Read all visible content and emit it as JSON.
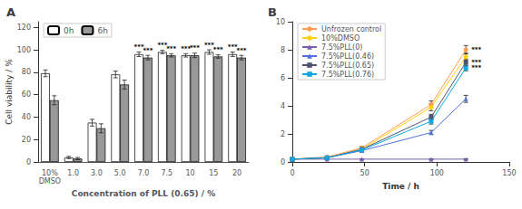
{
  "chart_data": [
    {
      "type": "bar",
      "title": "A",
      "categories": [
        "10%\nDMSO",
        "1.0",
        "3.0",
        "5.0",
        "7.0",
        "7.5",
        "10",
        "15",
        "20"
      ],
      "series": [
        {
          "name": "0h",
          "color": "#ffffff",
          "values": [
            79,
            4,
            35,
            78,
            96,
            98,
            95,
            98,
            96
          ],
          "errors": [
            3,
            1,
            3,
            3,
            2,
            1.5,
            1.5,
            2,
            2
          ]
        },
        {
          "name": "6h",
          "color": "#999999",
          "values": [
            55,
            3,
            30,
            69,
            93,
            95,
            95,
            94,
            93
          ],
          "errors": [
            4,
            1,
            4,
            4,
            2,
            1.5,
            2,
            1.5,
            2
          ]
        }
      ],
      "annotations": [
        {
          "text": "***",
          "category": "7.0",
          "series": "0h"
        },
        {
          "text": "***",
          "category": "7.0",
          "series": "6h"
        },
        {
          "text": "***",
          "category": "7.5",
          "series": "0h"
        },
        {
          "text": "***",
          "category": "7.5",
          "series": "6h"
        },
        {
          "text": "***",
          "category": "10",
          "series": "0h"
        },
        {
          "text": "***",
          "category": "10",
          "series": "6h"
        },
        {
          "text": "***",
          "category": "15",
          "series": "0h"
        },
        {
          "text": "***",
          "category": "15",
          "series": "6h"
        },
        {
          "text": "***",
          "category": "20",
          "series": "0h"
        },
        {
          "text": "***",
          "category": "20",
          "series": "6h"
        }
      ],
      "xlabel": "Concentration of PLL (0.65) / %",
      "ylabel": "Cell viability / %",
      "ylim": [
        0,
        125
      ],
      "yticks": [
        0,
        20,
        40,
        60,
        80,
        100,
        120
      ],
      "grid": false,
      "legend": "upper left"
    },
    {
      "type": "line",
      "title": "B",
      "x": [
        0,
        24,
        48,
        96,
        120
      ],
      "series": [
        {
          "name": "Unfrozen control",
          "marker": "circle",
          "values": [
            0.2,
            0.35,
            1.0,
            4.1,
            8.0
          ],
          "errors": [
            0.05,
            0.05,
            0.1,
            0.25,
            0.3
          ]
        },
        {
          "name": "10%DMSO",
          "marker": "circle",
          "values": [
            0.2,
            0.3,
            0.9,
            3.9,
            7.5
          ],
          "errors": [
            0.05,
            0.05,
            0.1,
            0.25,
            0.25
          ]
        },
        {
          "name": "7.5%PLL(0)",
          "marker": "triangle",
          "values": [
            0.2,
            0.2,
            0.2,
            0.2,
            0.2
          ],
          "errors": [
            0.02,
            0.02,
            0.02,
            0.02,
            0.02
          ]
        },
        {
          "name": "7.5%PLL(0.46)",
          "marker": "triangle",
          "values": [
            0.2,
            0.3,
            0.8,
            2.1,
            4.5
          ],
          "errors": [
            0.03,
            0.05,
            0.1,
            0.15,
            0.25
          ]
        },
        {
          "name": "7.5%PLL(0.65)",
          "marker": "square",
          "values": [
            0.2,
            0.3,
            0.9,
            3.2,
            7.1
          ],
          "errors": [
            0.03,
            0.05,
            0.1,
            0.2,
            0.25
          ]
        },
        {
          "name": "7.5%PLL(0.76)",
          "marker": "square",
          "values": [
            0.2,
            0.3,
            0.85,
            2.9,
            6.7
          ],
          "errors": [
            0.03,
            0.05,
            0.1,
            0.2,
            0.2
          ]
        }
      ],
      "annotations": [
        {
          "x": 120,
          "y": 8.0,
          "text": "***"
        },
        {
          "x": 120,
          "y": 7.1,
          "text": "***"
        },
        {
          "x": 120,
          "y": 6.7,
          "text": "***"
        }
      ],
      "xlabel": "Time / h",
      "xlim": [
        0,
        150
      ],
      "xticks": [
        0,
        50,
        100,
        150
      ],
      "ylim": [
        0,
        10
      ],
      "yticks": [
        0,
        2,
        4,
        6,
        8,
        10
      ],
      "grid": false,
      "legend": "upper left"
    }
  ]
}
